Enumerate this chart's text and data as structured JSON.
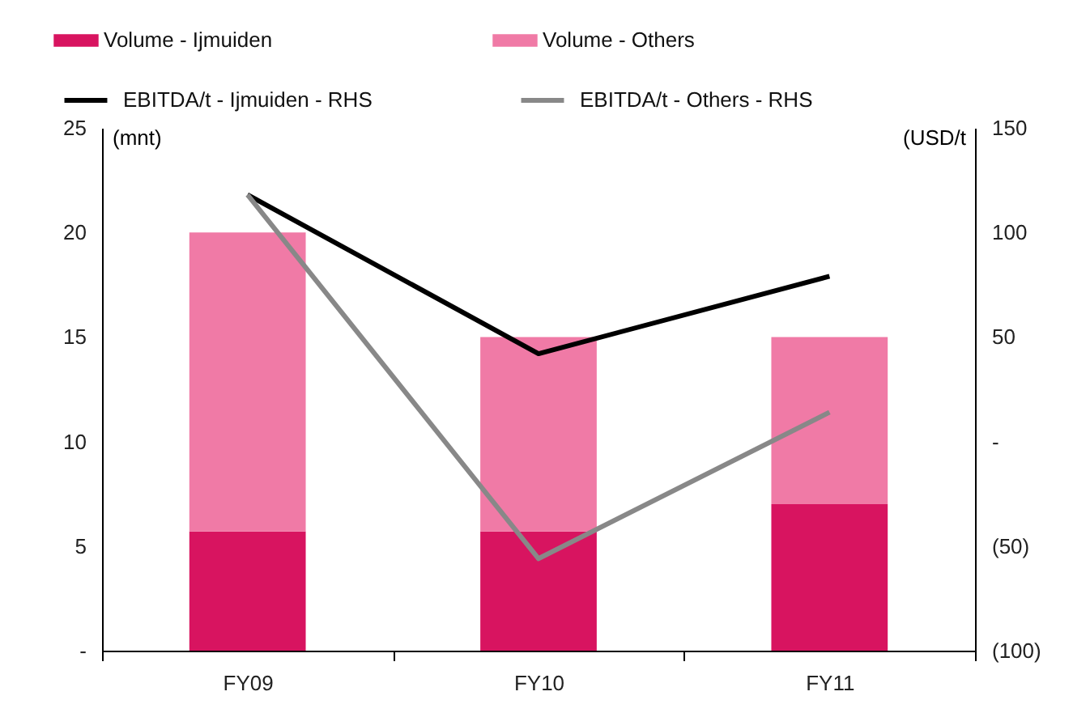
{
  "chart_data": {
    "type": "bar",
    "categories": [
      "FY09",
      "FY10",
      "FY11"
    ],
    "stacked": true,
    "ylabel": "(mnt)",
    "y2label": "(USD/t",
    "ylim": [
      0,
      25
    ],
    "yticks": [
      {
        "value": 0,
        "label": "-"
      },
      5,
      10,
      15,
      20,
      25
    ],
    "y2lim": [
      -100,
      150
    ],
    "y2ticks": [
      {
        "value": -100,
        "label": "(100)"
      },
      {
        "value": -50,
        "label": "(50)"
      },
      {
        "value": 0,
        "label": "-"
      },
      50,
      100,
      150
    ],
    "legend": "top",
    "series": [
      {
        "name": "Volume - Ijmuiden",
        "color": "#d81460",
        "values": [
          5.7,
          5.7,
          7
        ]
      },
      {
        "name": "Volume - Others",
        "color": "#f07aa6",
        "values": [
          14.3,
          9.3,
          8
        ]
      },
      {
        "name": "EBITDA/t - Ijmuiden - RHS",
        "type": "line",
        "axis": "y2",
        "color": "#000000",
        "values": [
          118,
          42,
          79
        ]
      },
      {
        "name": "EBITDA/t - Others - RHS",
        "type": "line",
        "axis": "y2",
        "color": "#888888",
        "values": [
          118,
          -56,
          14
        ]
      }
    ]
  }
}
